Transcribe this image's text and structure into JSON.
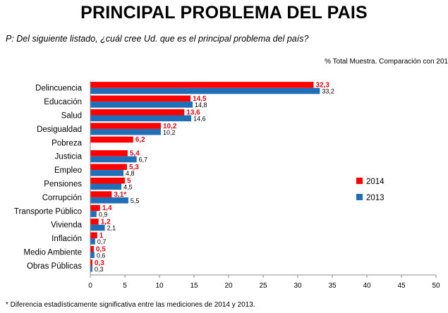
{
  "header": {
    "title": "PRINCIPAL PROBLEMA DEL PAIS",
    "question": "P: Del siguiente listado, ¿cuál cree Ud. que es el principal problema del país?",
    "subtitle": "% Total Muestra. Comparación con 201"
  },
  "footnote": "* Diferencia estadísticamente significativa entre las mediciones de 2014 y 2013.",
  "colors": {
    "s2014": "#ff0000",
    "s2013": "#1f6fb8",
    "label2014": "#e30613"
  },
  "chart_data": {
    "type": "bar",
    "orientation": "horizontal",
    "title": "PRINCIPAL PROBLEMA DEL PAIS",
    "categories": [
      "Delincuencia",
      "Educación",
      "Salud",
      "Desigualdad",
      "Pobreza",
      "Justicia",
      "Empleo",
      "Pensiones",
      "Corrupción",
      "Transporte Público",
      "Vivienda",
      "Inflación",
      "Medio Ambiente",
      "Obras Públicas"
    ],
    "series": [
      {
        "name": "2014",
        "values": [
          32.3,
          14.5,
          13.6,
          10.2,
          6.2,
          5.4,
          5.3,
          5.0,
          3.1,
          1.4,
          1.2,
          1.0,
          0.5,
          0.3
        ],
        "labels": [
          "32,3",
          "14,5",
          "13,6",
          "10,2",
          "6,2",
          "5,4",
          "5,3",
          "5",
          "3,1*",
          "1,4",
          "1,2",
          "1",
          "0,5",
          "0,3"
        ]
      },
      {
        "name": "2013",
        "values": [
          33.2,
          14.8,
          14.6,
          10.2,
          null,
          6.7,
          4.8,
          4.5,
          5.5,
          0.9,
          2.1,
          0.7,
          0.6,
          0.3
        ],
        "labels": [
          "33,2",
          "14,8",
          "14,6",
          "10,2",
          "",
          "6,7",
          "4,8",
          "4,5",
          "5,5",
          "0,9",
          "2,1",
          "0,7",
          "0,6",
          "0,3"
        ]
      }
    ],
    "xlim": [
      0,
      50
    ],
    "xticks": [
      "0",
      "5",
      "10",
      "15",
      "20",
      "25",
      "30",
      "35",
      "40",
      "45",
      "50"
    ],
    "legend": [
      "2014",
      "2013"
    ],
    "legend_position": "right"
  }
}
